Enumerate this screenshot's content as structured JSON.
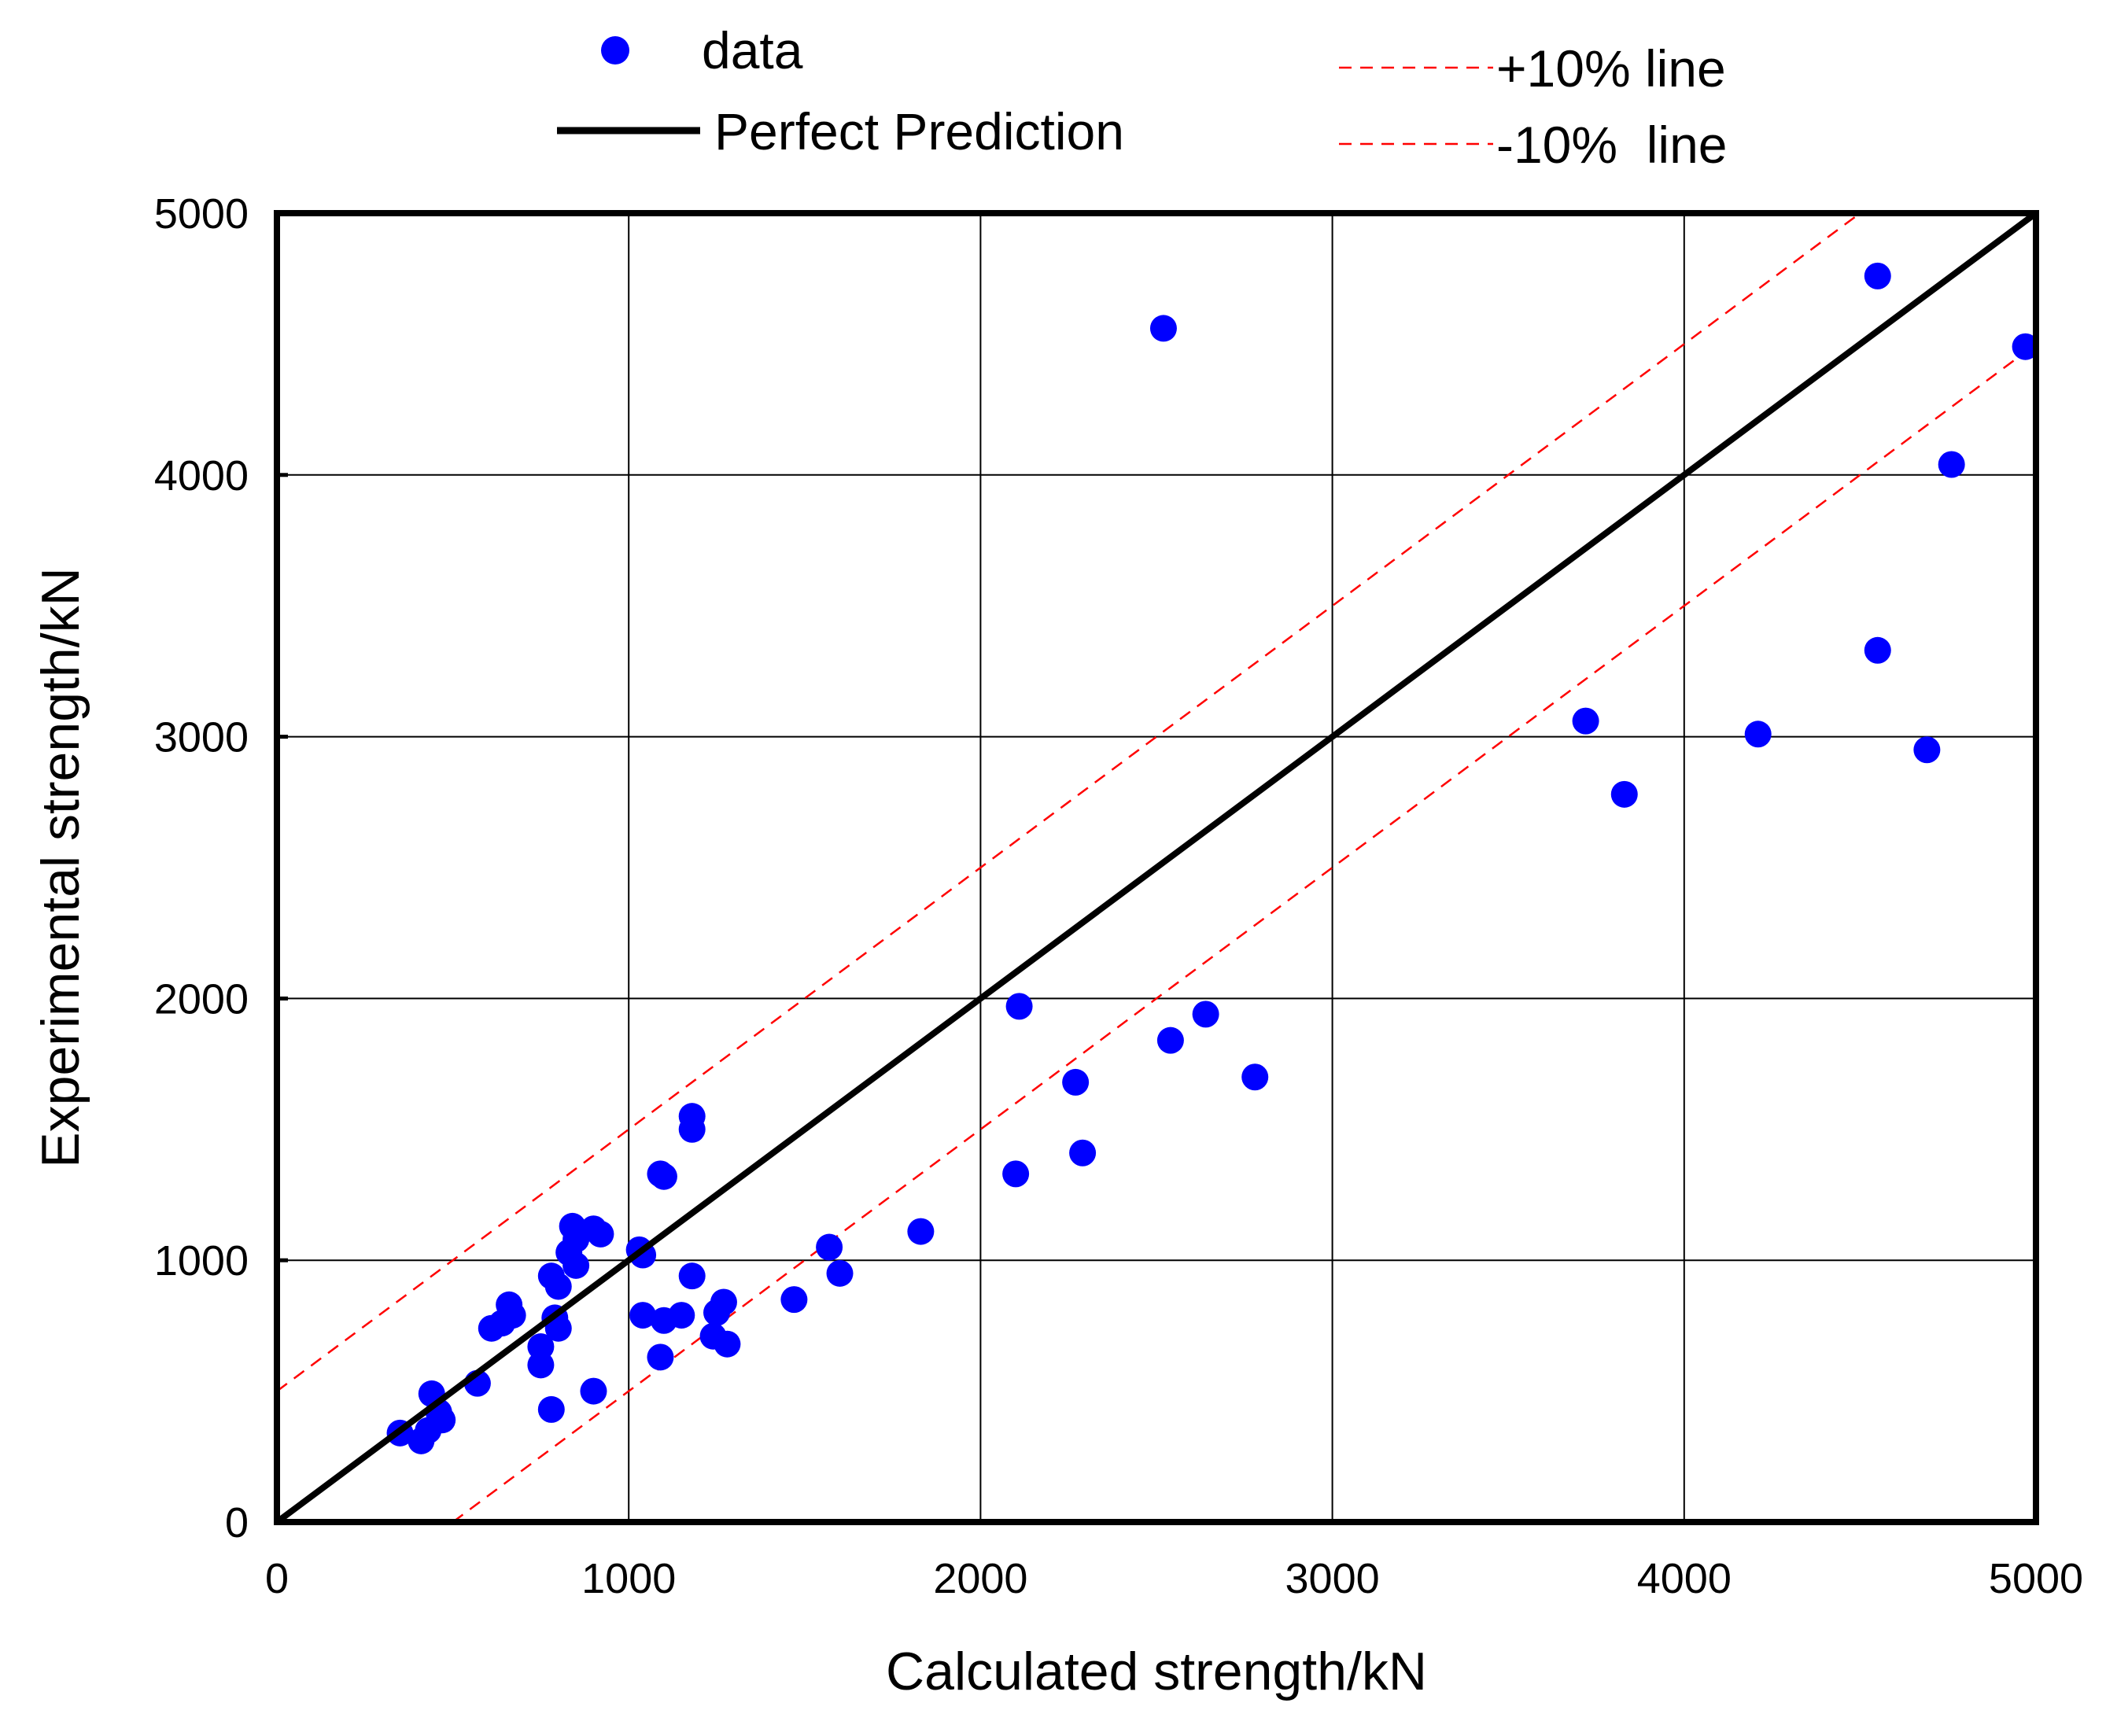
{
  "chart_data": {
    "type": "scatter",
    "xlabel": "Calculated strength/kN",
    "ylabel": "Experimental strength/kN",
    "xlim": [
      0,
      5000
    ],
    "ylim": [
      0,
      5000
    ],
    "x_ticks": [
      0,
      1000,
      2000,
      3000,
      4000,
      5000
    ],
    "y_ticks": [
      0,
      1000,
      2000,
      3000,
      4000,
      5000
    ],
    "x_tick_labels": [
      "0",
      "1000",
      "2000",
      "3000",
      "4000",
      "5000"
    ],
    "y_tick_labels": [
      "0",
      "1000",
      "2000",
      "3000",
      "4000",
      "5000"
    ],
    "grid": true,
    "legend": {
      "left": [
        {
          "label": "data",
          "style": "marker"
        },
        {
          "label": "Perfect Prediction",
          "style": "solid-line"
        }
      ],
      "right": [
        {
          "label": "+10% line",
          "style": "dashed-line"
        },
        {
          "label": "-10%  line",
          "style": "dashed-line"
        }
      ]
    },
    "colors": {
      "data": "#0000ff",
      "perfect": "#000000",
      "tolerance": "#ff0000"
    },
    "lines": [
      {
        "name": "Perfect Prediction",
        "x": [
          0,
          5000
        ],
        "y": [
          0,
          5000
        ]
      },
      {
        "name": "+10% line",
        "x": [
          0,
          4500
        ],
        "y": [
          500,
          5000
        ]
      },
      {
        "name": "-10%  line",
        "x": [
          500,
          5000
        ],
        "y": [
          0,
          4500
        ]
      }
    ],
    "series": [
      {
        "name": "data",
        "points": [
          [
            2520,
            4560
          ],
          [
            4550,
            4760
          ],
          [
            4970,
            4490
          ],
          [
            4760,
            4040
          ],
          [
            4550,
            3330
          ],
          [
            4690,
            2950
          ],
          [
            3720,
            3060
          ],
          [
            3830,
            2780
          ],
          [
            4210,
            3010
          ],
          [
            2110,
            1970
          ],
          [
            2270,
            1680
          ],
          [
            2540,
            1840
          ],
          [
            2640,
            1940
          ],
          [
            2780,
            1700
          ],
          [
            2290,
            1410
          ],
          [
            2100,
            1330
          ],
          [
            1830,
            1110
          ],
          [
            1570,
            1050
          ],
          [
            1600,
            950
          ],
          [
            1470,
            850
          ],
          [
            1180,
            1550
          ],
          [
            1180,
            1500
          ],
          [
            1090,
            1330
          ],
          [
            1100,
            1320
          ],
          [
            1030,
            1040
          ],
          [
            1040,
            1020
          ],
          [
            1180,
            940
          ],
          [
            1040,
            790
          ],
          [
            1100,
            770
          ],
          [
            1150,
            790
          ],
          [
            1250,
            800
          ],
          [
            1270,
            840
          ],
          [
            1240,
            710
          ],
          [
            1280,
            680
          ],
          [
            1090,
            630
          ],
          [
            840,
            1130
          ],
          [
            850,
            1080
          ],
          [
            900,
            1120
          ],
          [
            920,
            1100
          ],
          [
            830,
            1030
          ],
          [
            850,
            980
          ],
          [
            780,
            940
          ],
          [
            800,
            900
          ],
          [
            660,
            830
          ],
          [
            670,
            790
          ],
          [
            610,
            740
          ],
          [
            640,
            760
          ],
          [
            790,
            780
          ],
          [
            800,
            740
          ],
          [
            750,
            670
          ],
          [
            750,
            600
          ],
          [
            570,
            530
          ],
          [
            780,
            430
          ],
          [
            900,
            500
          ],
          [
            440,
            490
          ],
          [
            460,
            420
          ],
          [
            430,
            350
          ],
          [
            410,
            310
          ],
          [
            350,
            340
          ],
          [
            470,
            390
          ]
        ]
      }
    ]
  }
}
